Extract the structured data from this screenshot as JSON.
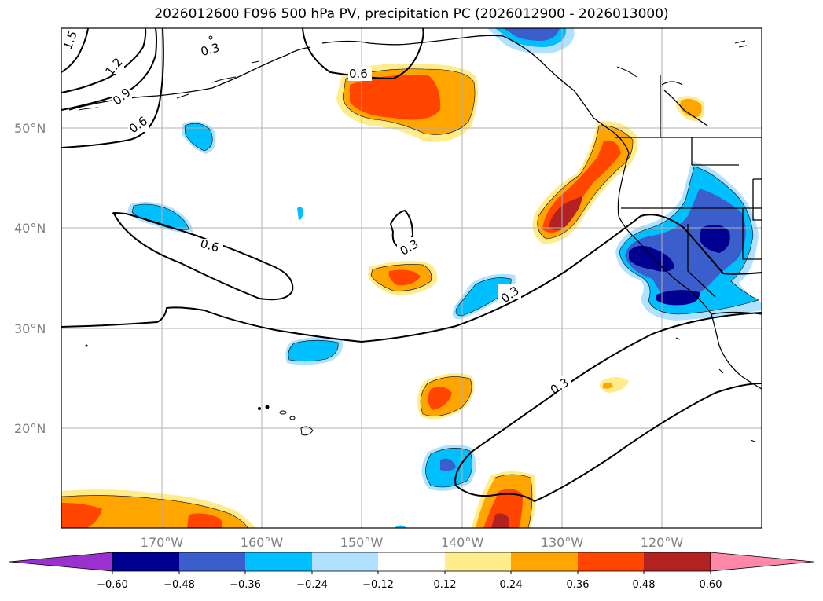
{
  "title": "2026012600 F096 500 hPa PV, precipitation PC (2026012900 - 2026013000)",
  "lat_labels": [
    "50°N",
    "40°N",
    "30°N",
    "20°N"
  ],
  "lon_labels": [
    "170°W",
    "160°W",
    "150°W",
    "140°W",
    "130°W",
    "120°W"
  ],
  "contour_labels": [
    "1.5",
    "1.2",
    "0.9",
    "0.6",
    "0.3",
    "0.6",
    "0.6",
    "0.3",
    "0.3",
    "0.3"
  ],
  "colorbar": {
    "tick_labels": [
      "−0.60",
      "−0.48",
      "−0.36",
      "−0.24",
      "−0.12",
      "0.12",
      "0.24",
      "0.36",
      "0.48",
      "0.60"
    ],
    "colors": [
      "#9b30d0",
      "#000090",
      "#3a5ecc",
      "#00bfff",
      "#b0e2ff",
      "#ffffff",
      "#ffec8b",
      "#ffa500",
      "#ff4500",
      "#b22222",
      "#ff88aa"
    ]
  }
}
